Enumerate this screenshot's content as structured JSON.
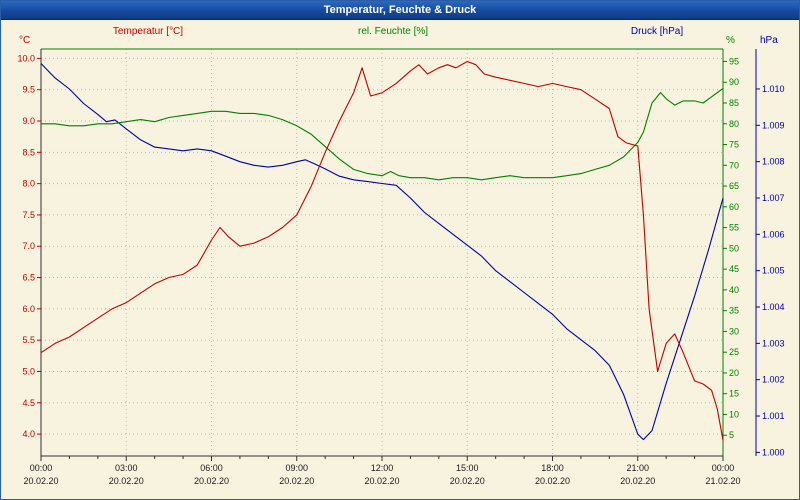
{
  "window": {
    "title": "Temperatur, Feuchte & Druck"
  },
  "legend": {
    "temperature": "Temperatur [°C]",
    "humidity": "rel. Feuchte [%]",
    "pressure": "Druck [hPa]"
  },
  "colors": {
    "background": "#f8f3de",
    "titlebar": "#164a9e",
    "grid": "#bdb8aa",
    "temperature": "#c00000",
    "humidity": "#008000",
    "pressure": "#0000a8"
  },
  "chart_data": {
    "type": "line",
    "title": "Temperatur, Feuchte & Druck",
    "grid": true,
    "legend_position": "top",
    "x_axis": {
      "unit": "hours",
      "range": [
        0,
        24
      ],
      "major_tick_hours": [
        0,
        3,
        6,
        9,
        12,
        15,
        18,
        21,
        24
      ],
      "tick_times": [
        "00:00",
        "03:00",
        "06:00",
        "09:00",
        "12:00",
        "15:00",
        "18:00",
        "21:00",
        "00:00"
      ],
      "tick_dates": [
        "20.02.20",
        "20.02.20",
        "20.02.20",
        "20.02.20",
        "20.02.20",
        "20.02.20",
        "20.02.20",
        "20.02.20",
        "21.02.20"
      ]
    },
    "axes": {
      "temperature": {
        "title": "°C",
        "label": "Temperatur [°C]",
        "color": "#c00000",
        "min": 3.65,
        "max": 10.15,
        "ticks": [
          4,
          4.5,
          5,
          5.5,
          6,
          6.5,
          7,
          7.5,
          8,
          8.5,
          9,
          9.5,
          10
        ]
      },
      "humidity": {
        "title": "%",
        "label": "rel. Feuchte [%]",
        "color": "#008000",
        "min": 0,
        "max": 98,
        "ticks": [
          5,
          10,
          15,
          20,
          25,
          30,
          35,
          40,
          45,
          50,
          55,
          60,
          65,
          70,
          75,
          80,
          85,
          90,
          95
        ]
      },
      "pressure": {
        "title": "hPa",
        "label": "Druck [hPa]",
        "color": "#0000a8",
        "min": 999.9,
        "max": 1011.1,
        "ticks": [
          1000,
          1001,
          1002,
          1003,
          1004,
          1005,
          1006,
          1007,
          1008,
          1009,
          1010
        ],
        "tick_labels": [
          "1.000",
          "1.001",
          "1.002",
          "1.003",
          "1.004",
          "1.005",
          "1.006",
          "1.007",
          "1.008",
          "1.009",
          "1.010"
        ]
      }
    },
    "series": [
      {
        "name": "Druck",
        "axis": "pressure",
        "color": "#0000a8",
        "x": [
          0,
          0.5,
          1,
          1.5,
          2,
          2.3,
          2.6,
          3,
          3.5,
          4,
          4.5,
          5,
          5.5,
          6,
          6.5,
          7,
          7.5,
          8,
          8.5,
          9,
          9.3,
          9.6,
          10,
          10.5,
          11,
          11.5,
          12,
          12.5,
          13,
          13.5,
          14,
          14.5,
          15,
          15.5,
          16,
          16.5,
          17,
          17.5,
          18,
          18.5,
          19,
          19.5,
          20,
          20.5,
          21,
          21.2,
          21.5,
          22,
          22.5,
          23,
          23.5,
          24
        ],
        "values": [
          1010.7,
          1010.3,
          1010.0,
          1009.6,
          1009.3,
          1009.1,
          1009.15,
          1008.9,
          1008.6,
          1008.4,
          1008.35,
          1008.3,
          1008.35,
          1008.3,
          1008.15,
          1008.0,
          1007.9,
          1007.85,
          1007.9,
          1008.0,
          1008.05,
          1007.95,
          1007.8,
          1007.6,
          1007.5,
          1007.45,
          1007.4,
          1007.35,
          1007.0,
          1006.6,
          1006.3,
          1006.0,
          1005.7,
          1005.4,
          1005.0,
          1004.7,
          1004.4,
          1004.1,
          1003.8,
          1003.4,
          1003.1,
          1002.8,
          1002.4,
          1001.6,
          1000.5,
          1000.35,
          1000.6,
          1001.9,
          1003.1,
          1004.3,
          1005.6,
          1007.0
        ]
      },
      {
        "name": "rel. Feuchte",
        "axis": "humidity",
        "color": "#008000",
        "x": [
          0,
          0.5,
          1,
          1.5,
          2,
          2.5,
          3,
          3.5,
          4,
          4.5,
          5,
          5.5,
          6,
          6.5,
          7,
          7.5,
          8,
          8.5,
          9,
          9.5,
          10,
          10.5,
          11,
          11.5,
          12,
          12.3,
          12.6,
          13,
          13.5,
          14,
          14.5,
          15,
          15.5,
          16,
          16.5,
          17,
          17.5,
          18,
          18.5,
          19,
          19.5,
          20,
          20.5,
          21,
          21.2,
          21.5,
          21.8,
          22,
          22.3,
          22.6,
          23,
          23.3,
          23.6,
          24
        ],
        "values": [
          80,
          80,
          79.5,
          79.5,
          80,
          80,
          80.5,
          81,
          80.5,
          81.5,
          82,
          82.5,
          83,
          83,
          82.5,
          82.5,
          82,
          81,
          79.5,
          77.5,
          74.5,
          71.5,
          69,
          68,
          67.5,
          68.5,
          67.5,
          67,
          67,
          66.5,
          67,
          67,
          66.5,
          67,
          67.5,
          67,
          67,
          67,
          67.5,
          68,
          69,
          70,
          72,
          75.5,
          78,
          85,
          87.5,
          86,
          84.5,
          85.5,
          85.5,
          85,
          86.5,
          88.5
        ]
      },
      {
        "name": "Temperatur",
        "axis": "temperature",
        "color": "#c00000",
        "x": [
          0,
          0.5,
          1,
          1.5,
          2,
          2.5,
          3,
          3.5,
          4,
          4.5,
          5,
          5.5,
          6,
          6.3,
          6.6,
          7,
          7.5,
          8,
          8.5,
          9,
          9.5,
          10,
          10.5,
          11,
          11.3,
          11.6,
          12,
          12.5,
          13,
          13.3,
          13.6,
          14,
          14.3,
          14.6,
          15,
          15.3,
          15.6,
          16,
          16.5,
          17,
          17.5,
          18,
          18.5,
          19,
          19.5,
          20,
          20.3,
          20.6,
          21,
          21.2,
          21.4,
          21.7,
          22,
          22.3,
          22.6,
          23,
          23.3,
          23.6,
          23.8,
          24
        ],
        "values": [
          5.3,
          5.45,
          5.55,
          5.7,
          5.85,
          6.0,
          6.1,
          6.25,
          6.4,
          6.5,
          6.55,
          6.7,
          7.1,
          7.3,
          7.15,
          7.0,
          7.05,
          7.15,
          7.3,
          7.5,
          7.95,
          8.5,
          9.0,
          9.45,
          9.85,
          9.4,
          9.45,
          9.6,
          9.8,
          9.9,
          9.75,
          9.85,
          9.9,
          9.85,
          9.95,
          9.9,
          9.75,
          9.7,
          9.65,
          9.6,
          9.55,
          9.6,
          9.55,
          9.5,
          9.35,
          9.2,
          8.75,
          8.65,
          8.6,
          7.5,
          6.0,
          5.0,
          5.45,
          5.6,
          5.3,
          4.85,
          4.8,
          4.7,
          4.4,
          3.9
        ]
      }
    ]
  }
}
